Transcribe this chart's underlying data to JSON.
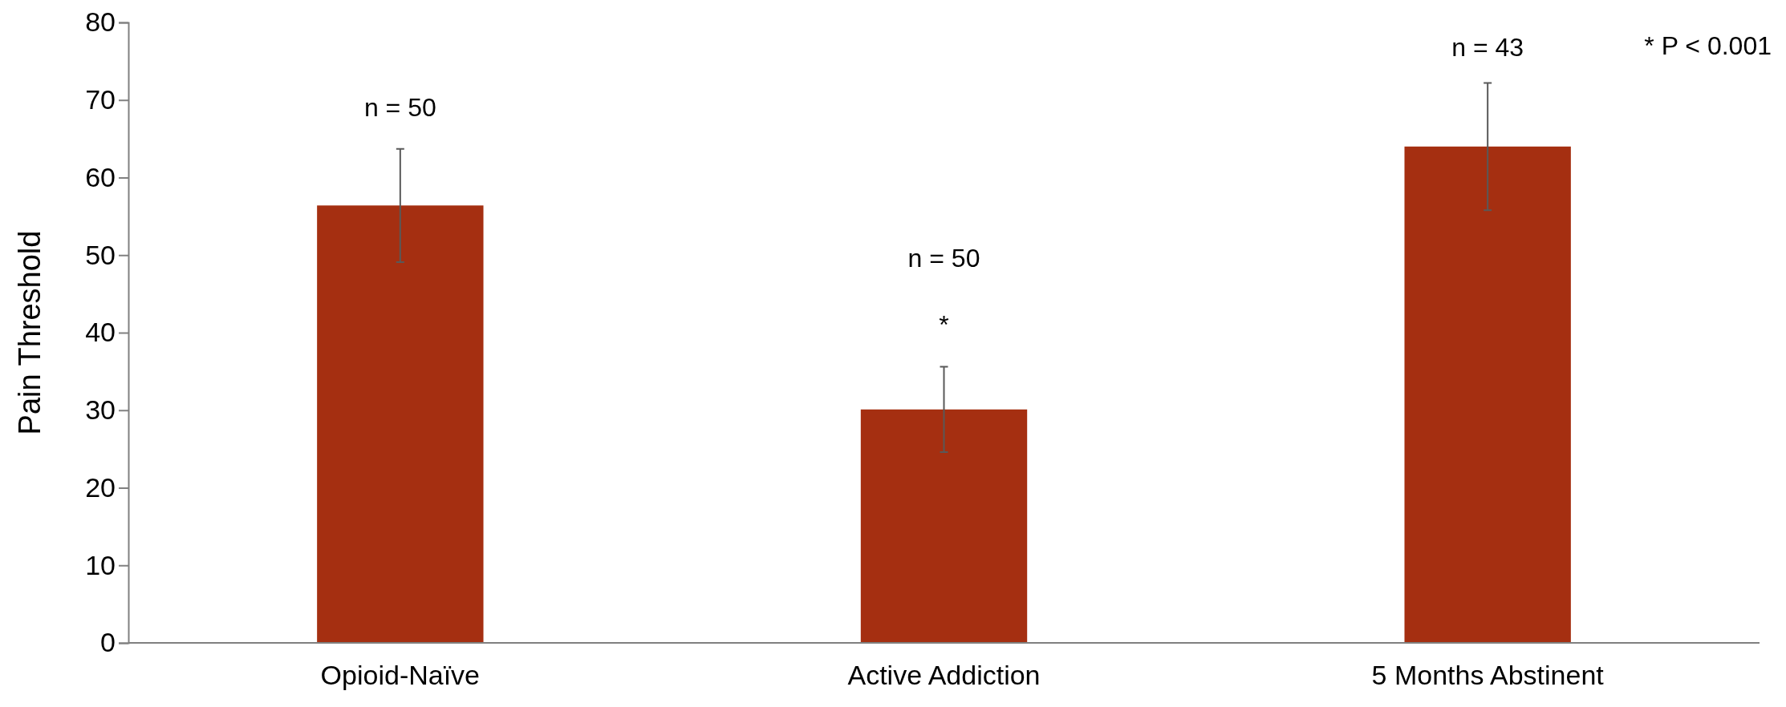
{
  "chart_data": {
    "type": "bar",
    "ylabel": "Pain Threshold",
    "categories": [
      "Opioid-Naïve",
      "Active Addiction",
      "5 Months Abstinent"
    ],
    "values": [
      56.4,
      30.1,
      64.0
    ],
    "errors": [
      7.3,
      5.5,
      8.2
    ],
    "color": "#a52f11",
    "ylim": [
      0,
      80
    ],
    "yticks": [
      0,
      10,
      20,
      30,
      40,
      50,
      60,
      70,
      80
    ],
    "grid": false,
    "annotations": [
      "n = 50",
      "n = 50",
      "*",
      "n = 43",
      "* P < 0.001"
    ]
  }
}
